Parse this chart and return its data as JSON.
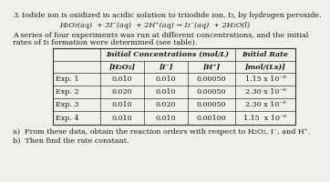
{
  "title_num": "3.",
  "title_text": "Iodide ion is oxidized in acidic solution to triiodide ion, I₃, by hydrogen peroxide.",
  "equation": "H₂O₂(aq)  + 3I⁻(aq)  + 2H⁺(aq) → I₃⁻(aq)  + 2H₂O(l)",
  "intro1": "A series of four experiments was run at different concentrations, and the initial",
  "intro2": "rates of I₃ formation were determined (see table).",
  "col_header_1": "Initial Concentrations (mol/L)",
  "col_header_2": "Initial Rate",
  "sub_h2o2": "[H₂O₂]",
  "sub_i": "[I⁻]",
  "sub_hplus": "[H⁺]",
  "sub_rate": "[mol/(Ls)]",
  "rows": [
    [
      "Exp. 1",
      "0.010",
      "0.010",
      "0.00050",
      "1.15 x 10⁻⁶"
    ],
    [
      "Exp. 2",
      "0.020",
      "0.010",
      "0.00050",
      "2.30 x 10⁻⁶"
    ],
    [
      "Exp. 3",
      "0.010",
      "0.020",
      "0.00050",
      "2.30 x 10⁻⁶"
    ],
    [
      "Exp. 4",
      "0.010",
      "0.010",
      "0.00100",
      "1.15  x 10⁻⁶"
    ]
  ],
  "footer_a": "a)  From these data, obtain the reaction orders with respect to H₂O₂, I⁻, and H⁺.",
  "footer_b": "b)  Then find the rate constant.",
  "bg_color": "#f0efea",
  "text_color": "#1a1a1a",
  "fs": 5.8
}
